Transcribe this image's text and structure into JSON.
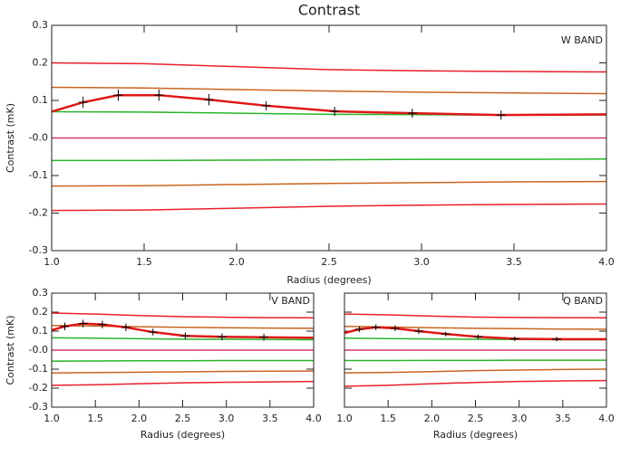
{
  "chart_data": [
    {
      "type": "line",
      "title": "Contrast",
      "annotation": "W BAND",
      "xlabel": "Radius (degrees)",
      "ylabel": "Contrast (mK)",
      "xlim": [
        1,
        4
      ],
      "ylim": [
        -0.3,
        0.3
      ],
      "xticks": [
        {
          "value": 1,
          "label": "1.0"
        },
        1.5,
        {
          "value": 2,
          "label": "2.0"
        },
        2.5,
        {
          "value": 3,
          "label": "3.0"
        },
        3.5,
        {
          "value": 4,
          "label": "4.0"
        }
      ],
      "yticks": [
        -0.3,
        -0.2,
        -0.1,
        {
          "value": 0,
          "label": "-0.0"
        },
        0.1,
        0.2,
        0.3
      ],
      "ytick_labels": true,
      "x": [
        1,
        1.5,
        2,
        2.5,
        3,
        3.5,
        4
      ],
      "series": [
        {
          "color": "#e8202a",
          "values": [
            0.2,
            0.198,
            0.19,
            0.182,
            0.179,
            0.177,
            0.176
          ]
        },
        {
          "color": "#c8641e",
          "values": [
            0.135,
            0.133,
            0.129,
            0.125,
            0.122,
            0.12,
            0.118
          ]
        },
        {
          "color": "#28b428",
          "values": [
            0.07,
            0.069,
            0.066,
            0.063,
            0.062,
            0.061,
            0.061
          ]
        },
        {
          "color": "#d03c6e",
          "values": [
            0,
            0,
            0,
            0,
            0,
            0,
            0
          ]
        },
        {
          "color": "#28b428",
          "values": [
            -0.06,
            -0.06,
            -0.059,
            -0.058,
            -0.057,
            -0.057,
            -0.056
          ]
        },
        {
          "color": "#c8641e",
          "values": [
            -0.128,
            -0.127,
            -0.124,
            -0.121,
            -0.119,
            -0.117,
            -0.116
          ]
        },
        {
          "color": "#e8202a",
          "values": [
            -0.193,
            -0.192,
            -0.187,
            -0.182,
            -0.179,
            -0.177,
            -0.176
          ]
        },
        {
          "color": "#e01818",
          "line_width": 2.5,
          "x": [
            1,
            1.17,
            1.36,
            1.58,
            1.85,
            2.16,
            2.53,
            2.95,
            3.43,
            4
          ],
          "values": [
            0.07,
            0.095,
            0.114,
            0.114,
            0.102,
            0.086,
            0.071,
            0.066,
            0.061,
            0.063
          ],
          "errors": [
            null,
            0.015,
            0.015,
            0.015,
            0.015,
            0.012,
            0.012,
            0.012,
            0.012,
            null
          ]
        }
      ]
    },
    {
      "type": "line",
      "annotation": "V BAND",
      "xlabel": "Radius (degrees)",
      "ylabel": "Contrast (mK)",
      "xlim": [
        1,
        4
      ],
      "ylim": [
        -0.3,
        0.3
      ],
      "xticks": [
        {
          "value": 1,
          "label": "1.0"
        },
        1.5,
        {
          "value": 2,
          "label": "2.0"
        },
        2.5,
        {
          "value": 3,
          "label": "3.0"
        },
        3.5,
        {
          "value": 4,
          "label": "4.0"
        }
      ],
      "yticks": [
        -0.3,
        -0.2,
        -0.1,
        {
          "value": 0,
          "label": "-0.0"
        },
        0.1,
        0.2,
        0.3
      ],
      "ytick_labels": true,
      "x": [
        1,
        1.5,
        2,
        2.5,
        3,
        3.5,
        4
      ],
      "series": [
        {
          "color": "#e8202a",
          "values": [
            0.195,
            0.19,
            0.182,
            0.176,
            0.173,
            0.171,
            0.17
          ]
        },
        {
          "color": "#c8641e",
          "values": [
            0.13,
            0.127,
            0.123,
            0.12,
            0.118,
            0.116,
            0.115
          ]
        },
        {
          "color": "#28b428",
          "values": [
            0.065,
            0.063,
            0.06,
            0.058,
            0.057,
            0.056,
            0.055
          ]
        },
        {
          "color": "#d03c6e",
          "values": [
            0,
            0,
            0,
            0,
            0,
            0,
            0
          ]
        },
        {
          "color": "#28b428",
          "values": [
            -0.058,
            -0.057,
            -0.056,
            -0.056,
            -0.055,
            -0.055,
            -0.055
          ]
        },
        {
          "color": "#c8641e",
          "values": [
            -0.12,
            -0.118,
            -0.116,
            -0.114,
            -0.112,
            -0.111,
            -0.11
          ]
        },
        {
          "color": "#e8202a",
          "values": [
            -0.185,
            -0.182,
            -0.177,
            -0.172,
            -0.169,
            -0.167,
            -0.165
          ]
        },
        {
          "color": "#e01818",
          "line_width": 2.5,
          "x": [
            1,
            1.15,
            1.36,
            1.58,
            1.85,
            2.16,
            2.53,
            2.95,
            3.43,
            4
          ],
          "values": [
            0.105,
            0.125,
            0.14,
            0.135,
            0.12,
            0.095,
            0.075,
            0.07,
            0.068,
            0.065
          ],
          "errors": [
            null,
            0.02,
            0.02,
            0.02,
            0.02,
            0.018,
            0.018,
            0.018,
            0.018,
            null
          ]
        }
      ]
    },
    {
      "type": "line",
      "annotation": "Q BAND",
      "xlabel": "Radius (degrees)",
      "xlim": [
        1,
        4
      ],
      "ylim": [
        -0.3,
        0.3
      ],
      "xticks": [
        {
          "value": 1,
          "label": "1.0"
        },
        1.5,
        {
          "value": 2,
          "label": "2.0"
        },
        2.5,
        {
          "value": 3,
          "label": "3.0"
        },
        3.5,
        {
          "value": 4,
          "label": "4.0"
        }
      ],
      "yticks": [
        -0.3,
        -0.2,
        -0.1,
        0,
        0.1,
        0.2,
        0.3
      ],
      "ytick_labels": false,
      "x": [
        1,
        1.5,
        2,
        2.5,
        3,
        3.5,
        4
      ],
      "series": [
        {
          "color": "#e8202a",
          "values": [
            0.19,
            0.186,
            0.179,
            0.174,
            0.172,
            0.171,
            0.17
          ]
        },
        {
          "color": "#c8641e",
          "values": [
            0.125,
            0.122,
            0.118,
            0.115,
            0.113,
            0.111,
            0.11
          ]
        },
        {
          "color": "#28b428",
          "values": [
            0.063,
            0.061,
            0.059,
            0.057,
            0.056,
            0.055,
            0.055
          ]
        },
        {
          "color": "#d03c6e",
          "values": [
            0,
            0,
            0,
            0,
            0,
            0,
            0
          ]
        },
        {
          "color": "#28b428",
          "values": [
            -0.055,
            -0.055,
            -0.054,
            -0.054,
            -0.053,
            -0.053,
            -0.053
          ]
        },
        {
          "color": "#c8641e",
          "values": [
            -0.12,
            -0.117,
            -0.113,
            -0.108,
            -0.105,
            -0.102,
            -0.1
          ]
        },
        {
          "color": "#e8202a",
          "values": [
            -0.19,
            -0.185,
            -0.177,
            -0.17,
            -0.165,
            -0.162,
            -0.16
          ]
        },
        {
          "color": "#e01818",
          "line_width": 2.5,
          "x": [
            1,
            1.17,
            1.36,
            1.58,
            1.85,
            2.16,
            2.53,
            2.95,
            3.43,
            4
          ],
          "values": [
            0.09,
            0.11,
            0.12,
            0.115,
            0.1,
            0.085,
            0.07,
            0.06,
            0.058,
            0.058
          ],
          "errors": [
            null,
            0.015,
            0.015,
            0.015,
            0.015,
            0.012,
            0.012,
            0.012,
            0.012,
            null
          ]
        }
      ]
    }
  ]
}
